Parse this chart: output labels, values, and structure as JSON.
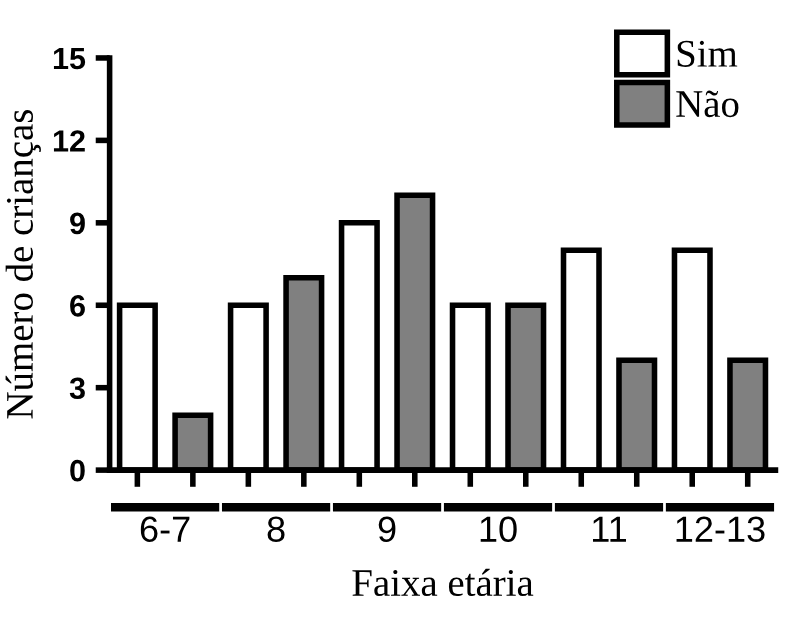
{
  "chart_data": {
    "type": "bar",
    "xlabel": "Faixa etária",
    "ylabel": "Número de crianças",
    "categories": [
      "6-7",
      "8",
      "9",
      "10",
      "11",
      "12-13"
    ],
    "series": [
      {
        "name": "Sim",
        "color": "#ffffff",
        "values": [
          6,
          6,
          9,
          6,
          8,
          8
        ]
      },
      {
        "name": "Não",
        "color": "#808080",
        "values": [
          2,
          7,
          10,
          6,
          4,
          4
        ]
      }
    ],
    "ylim": [
      0,
      15
    ],
    "yticks": [
      0,
      3,
      6,
      9,
      12,
      15
    ],
    "grid": false,
    "legend": "top right"
  }
}
